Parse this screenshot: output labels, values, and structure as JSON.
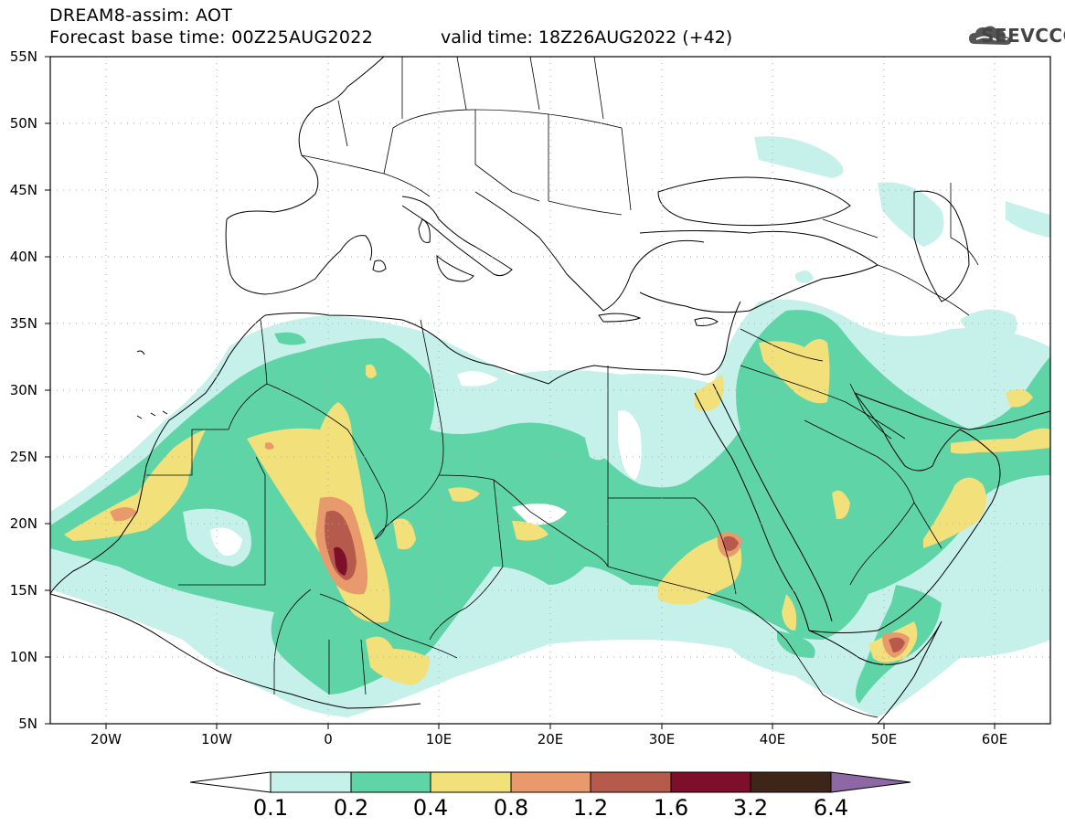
{
  "title": {
    "line1": "DREAM8-assim: AOT",
    "line2": "Forecast base time: 00Z25AUG2022",
    "valid": "valid time: 18Z26AUG2022 (+42)"
  },
  "logo": {
    "text": "SEEVCCC"
  },
  "map": {
    "lon_range": [
      -25,
      65
    ],
    "lat_range": [
      5,
      55
    ],
    "lat_labels": [
      "55N",
      "50N",
      "45N",
      "40N",
      "35N",
      "30N",
      "25N",
      "20N",
      "15N",
      "10N",
      "5N"
    ],
    "lon_labels": [
      "20W",
      "10W",
      "0",
      "10E",
      "20E",
      "30E",
      "40E",
      "50E",
      "60E"
    ],
    "grid": "dotted"
  },
  "colorbar": {
    "labels": [
      "0.1",
      "0.2",
      "0.4",
      "0.8",
      "1.2",
      "1.6",
      "3.2",
      "6.4"
    ],
    "colors": [
      "#c6f0ea",
      "#5fd4a6",
      "#f2e07a",
      "#e89a6c",
      "#b65a4c",
      "#7e0f2b",
      "#3d2617",
      "#8d68a4"
    ]
  }
}
